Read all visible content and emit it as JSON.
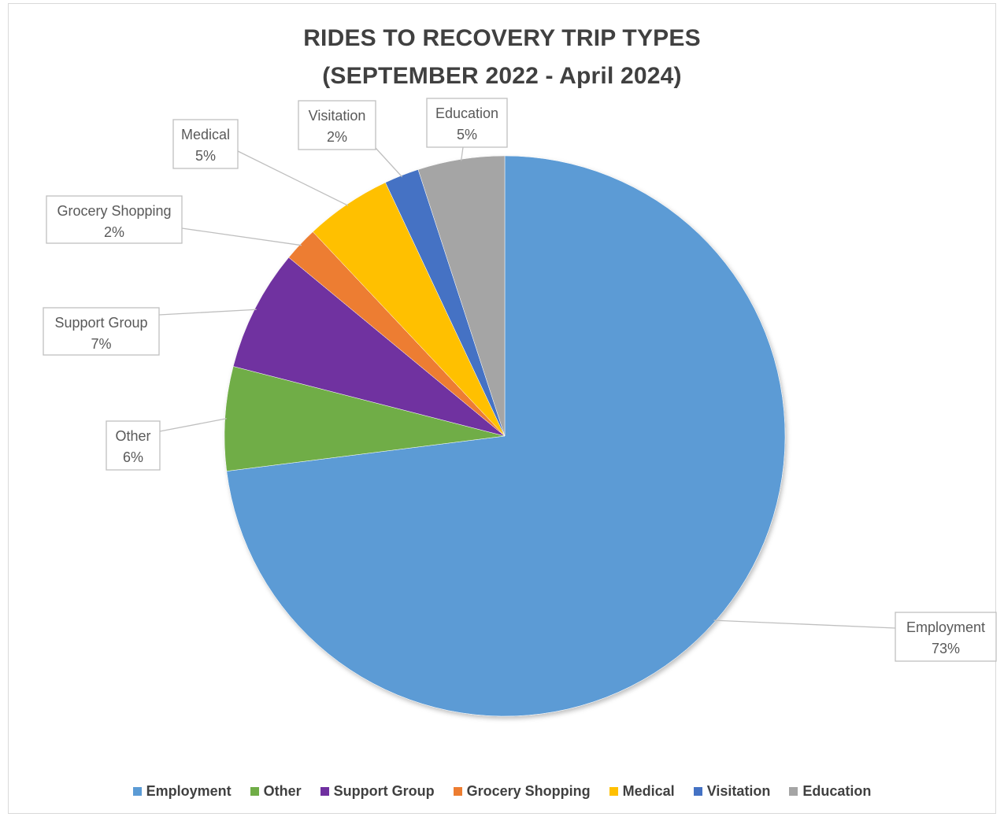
{
  "chart_data": {
    "type": "pie",
    "title_lines": [
      "RIDES TO RECOVERY TRIP TYPES",
      "(SEPTEMBER 2022 - April 2024)"
    ],
    "slices": [
      {
        "name": "Employment",
        "label": "Employment",
        "value": 73,
        "display": "73%",
        "color": "#5b9bd5"
      },
      {
        "name": "Other",
        "label": "Other",
        "value": 6,
        "display": "6%",
        "color": "#70ad47"
      },
      {
        "name": "Support Group",
        "label": "Support Group",
        "value": 7,
        "display": "7%",
        "color": "#7030a0"
      },
      {
        "name": "Grocery Shopping",
        "label": "Grocery Shopping",
        "value": 2,
        "display": "2%",
        "color": "#ed7d31"
      },
      {
        "name": "Medical",
        "label": "Medical",
        "value": 5,
        "display": "5%",
        "color": "#ffc000"
      },
      {
        "name": "Visitation",
        "label": "Visitation",
        "value": 2,
        "display": "2%",
        "color": "#4472c4"
      },
      {
        "name": "Education",
        "label": "Education",
        "value": 5,
        "display": "5%",
        "color": "#a5a5a5"
      }
    ],
    "legend_position": "bottom"
  }
}
